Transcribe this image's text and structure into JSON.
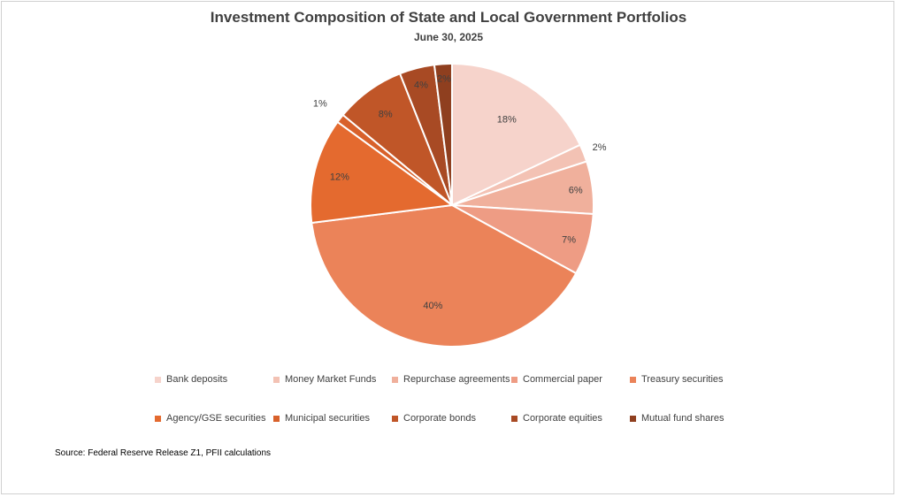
{
  "chart_data": {
    "type": "pie",
    "title": "Investment Composition of State and Local Government Portfolios",
    "subtitle": "June 30, 2025",
    "categories": [
      "Bank deposits",
      "Money Market Funds",
      "Repurchase agreements",
      "Commercial paper",
      "Treasury securities",
      "Agency/GSE securities",
      "Municipal securities",
      "Corporate bonds",
      "Corporate equities",
      "Mutual fund shares"
    ],
    "values": [
      18,
      2,
      6,
      7,
      40,
      12,
      1,
      8,
      4,
      2
    ],
    "labels": [
      "18%",
      "2%",
      "6%",
      "7%",
      "40%",
      "12%",
      "1%",
      "8%",
      "4%",
      "2%"
    ],
    "colors": [
      "#f6d3cb",
      "#f3c2b4",
      "#f0b09c",
      "#ee9c84",
      "#eb8359",
      "#e46a2f",
      "#d8612b",
      "#c05628",
      "#a84a24",
      "#8f3f1f"
    ],
    "legend_position": "bottom"
  },
  "source": "Source:  Federal Reserve Release Z1, PFII calculations"
}
